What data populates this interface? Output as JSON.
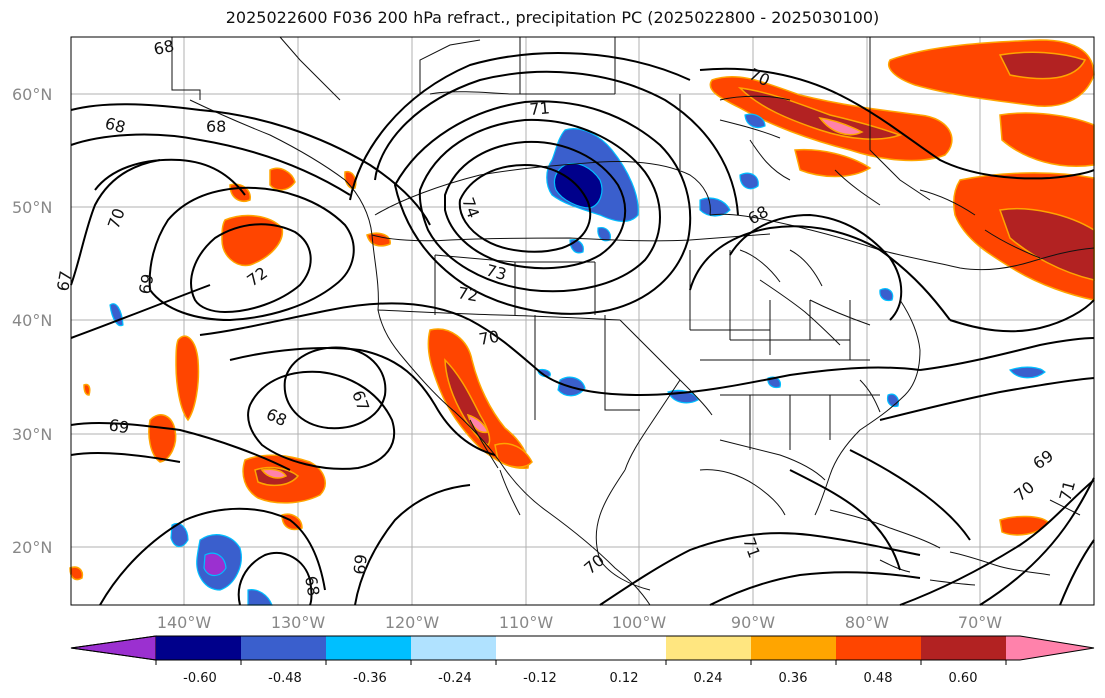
{
  "title": "2025022600 F036 200 hPa refract., precipitation PC (2025022800 - 2025030100)",
  "map": {
    "lat_labels": [
      "60°N",
      "50°N",
      "40°N",
      "30°N",
      "20°N"
    ],
    "lon_labels": [
      "140°W",
      "130°W",
      "120°W",
      "110°W",
      "100°W",
      "90°W",
      "80°W",
      "70°W"
    ],
    "contour_labels": [
      "68",
      "68",
      "68",
      "67",
      "69",
      "72",
      "71",
      "74",
      "73",
      "72",
      "70",
      "67",
      "68",
      "69",
      "69",
      "68",
      "70",
      "69",
      "70",
      "71",
      "70",
      "71",
      "68",
      "70"
    ]
  },
  "colorbar": {
    "tick_labels": [
      "-0.60",
      "-0.48",
      "-0.36",
      "-0.24",
      "-0.12",
      "0.12",
      "0.24",
      "0.36",
      "0.48",
      "0.60"
    ],
    "colors": [
      "#9b30d0",
      "#00008b",
      "#3a5fcd",
      "#00bfff",
      "#b0e2ff",
      "#ffffff",
      "#ffe680",
      "#ffa500",
      "#ff4500",
      "#b22222",
      "#ff82ab",
      "#ff82ab"
    ]
  }
}
